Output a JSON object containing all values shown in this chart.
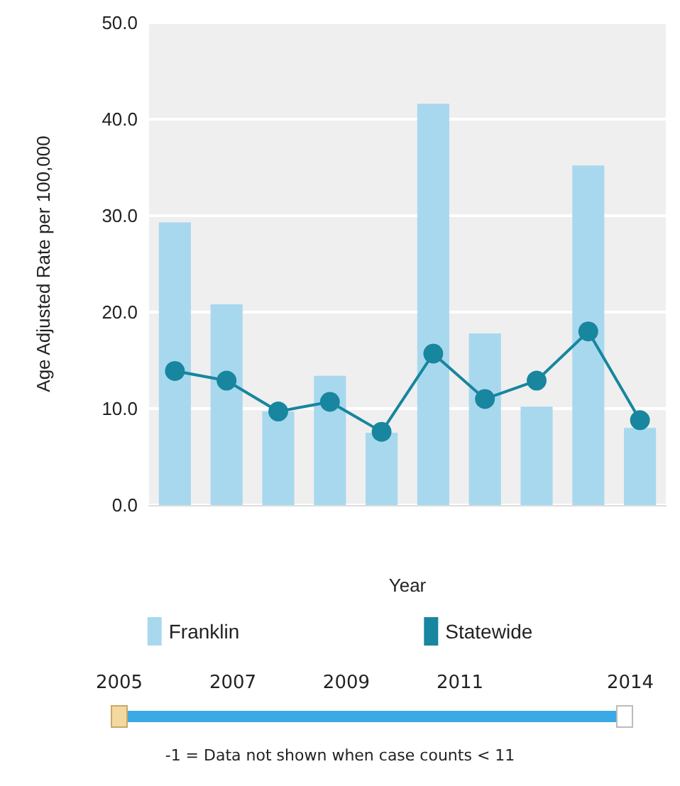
{
  "chart_data": {
    "type": "bar",
    "xlabel": "Year",
    "ylabel": "Age Adjusted Rate per 100,000",
    "categories": [
      null,
      null,
      null,
      null,
      null,
      null,
      null,
      null,
      null,
      null
    ],
    "series": [
      {
        "name": "Franklin",
        "color": "#a8d8ee",
        "values": [
          29.3,
          20.8,
          9.7,
          13.4,
          7.5,
          41.6,
          17.8,
          10.2,
          35.2,
          8.0
        ]
      },
      {
        "name": "Statewide",
        "type": "line",
        "color": "#17869e",
        "values": [
          13.9,
          12.9,
          9.7,
          10.7,
          7.6,
          15.7,
          11.0,
          12.9,
          18.0,
          8.8
        ]
      }
    ],
    "ylim": [
      0,
      50
    ],
    "yticks": [
      {
        "value": 0,
        "label": "0.0"
      },
      {
        "value": 10,
        "label": "10.0"
      },
      {
        "value": 20,
        "label": "20.0"
      },
      {
        "value": 30,
        "label": "30.0"
      },
      {
        "value": 40,
        "label": "40.0"
      },
      {
        "value": 50,
        "label": "50.0"
      }
    ],
    "grid": "y",
    "legend": "bottom",
    "marker": "circle",
    "annotations": [
      "2005",
      "2007",
      "2009",
      "2011",
      "2014",
      "-1 = Data not shown when case counts < 11"
    ]
  }
}
